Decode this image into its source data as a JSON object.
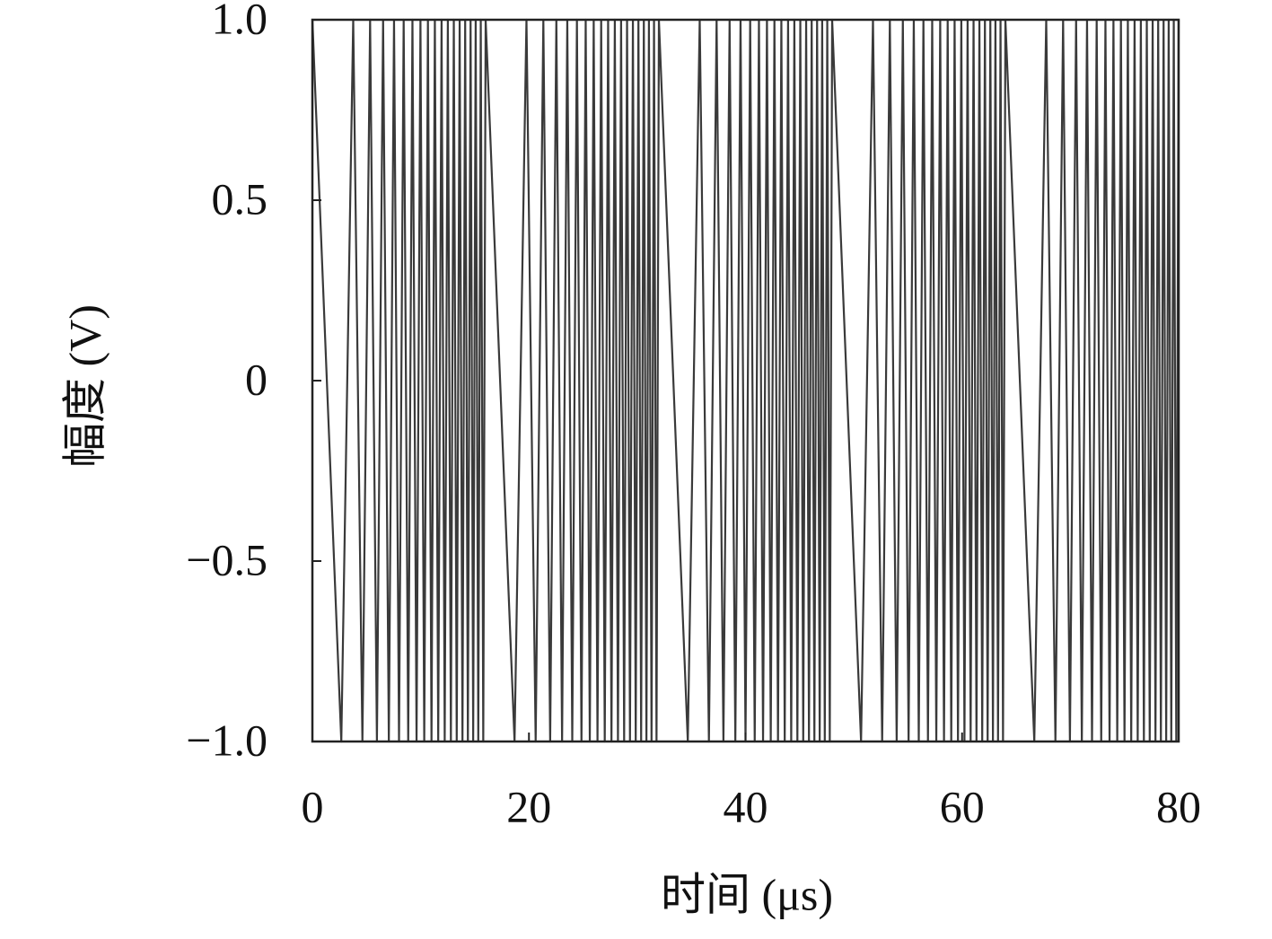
{
  "chart_data": {
    "type": "line",
    "xlabel": "时间 (μs)",
    "ylabel": "幅度 (V)",
    "xlim": [
      0,
      80
    ],
    "ylim": [
      -1.0,
      1.0
    ],
    "xticks": [
      0,
      20,
      40,
      60,
      80
    ],
    "yticks": [
      {
        "value": -1.0,
        "label": "−1.0"
      },
      {
        "value": -0.5,
        "label": "−0.5"
      },
      0,
      {
        "value": 0.5,
        "label": "0.5"
      },
      {
        "value": 1.0,
        "label": "1.0"
      }
    ],
    "grid": false,
    "series": [
      {
        "color": "#3a3a3a",
        "x": [
          0,
          2.67,
          3.77,
          4.62,
          5.33,
          5.96,
          6.53,
          7.06,
          7.54,
          8,
          8.43,
          8.85,
          9.24,
          9.62,
          9.98,
          10.33,
          10.67,
          11,
          11.31,
          11.62,
          11.93,
          12.22,
          12.51,
          12.79,
          13.06,
          13.33,
          13.6,
          13.86,
          14.11,
          14.36,
          14.61,
          14.85,
          15.08,
          15.32,
          15.55,
          15.78,
          16,
          18.67,
          19.77,
          20.62,
          21.33,
          21.96,
          22.53,
          23.06,
          23.54,
          24,
          24.43,
          24.85,
          25.24,
          25.62,
          25.98,
          26.33,
          26.67,
          27,
          27.31,
          27.62,
          27.93,
          28.22,
          28.51,
          28.79,
          29.06,
          29.33,
          29.6,
          29.86,
          30.11,
          30.36,
          30.61,
          30.85,
          31.08,
          31.32,
          31.55,
          31.78,
          32,
          34.67,
          35.77,
          36.62,
          37.33,
          37.96,
          38.53,
          39.06,
          39.54,
          40,
          40.43,
          40.85,
          41.24,
          41.62,
          41.98,
          42.33,
          42.67,
          43,
          43.31,
          43.62,
          43.93,
          44.22,
          44.51,
          44.79,
          45.06,
          45.33,
          45.6,
          45.86,
          46.11,
          46.36,
          46.61,
          46.85,
          47.08,
          47.32,
          47.55,
          47.78,
          48,
          50.67,
          51.77,
          52.62,
          53.33,
          53.96,
          54.53,
          55.06,
          55.54,
          56,
          56.43,
          56.85,
          57.24,
          57.62,
          57.98,
          58.33,
          58.67,
          59,
          59.31,
          59.62,
          59.93,
          60.22,
          60.51,
          60.79,
          61.06,
          61.33,
          61.6,
          61.86,
          62.11,
          62.36,
          62.61,
          62.85,
          63.08,
          63.32,
          63.55,
          63.78,
          64,
          66.67,
          67.77,
          68.62,
          69.33,
          69.96,
          70.53,
          71.06,
          71.54,
          72,
          72.43,
          72.85,
          73.24,
          73.62,
          73.98,
          74.33,
          74.67,
          75,
          75.31,
          75.62,
          75.93,
          76.22,
          76.51,
          76.79,
          77.06,
          77.33,
          77.6,
          77.86,
          78.11,
          78.36,
          78.61,
          78.85,
          79.08,
          79.32,
          79.55,
          79.78,
          80
        ],
        "values": [
          1,
          -1,
          1,
          -1,
          1,
          -1,
          1,
          -1,
          1,
          -1,
          1,
          -1,
          1,
          -1,
          1,
          -1,
          1,
          -1,
          1,
          -1,
          1,
          -1,
          1,
          -1,
          1,
          -1,
          1,
          -1,
          1,
          -1,
          1,
          -1,
          1,
          -1,
          1,
          -1,
          1,
          -1,
          1,
          -1,
          1,
          -1,
          1,
          -1,
          1,
          -1,
          1,
          -1,
          1,
          -1,
          1,
          -1,
          1,
          -1,
          1,
          -1,
          1,
          -1,
          1,
          -1,
          1,
          -1,
          1,
          -1,
          1,
          -1,
          1,
          -1,
          1,
          -1,
          1,
          -1,
          1,
          -1,
          1,
          -1,
          1,
          -1,
          1,
          -1,
          1,
          -1,
          1,
          -1,
          1,
          -1,
          1,
          -1,
          1,
          -1,
          1,
          -1,
          1,
          -1,
          1,
          -1,
          1,
          -1,
          1,
          -1,
          1,
          -1,
          1,
          -1,
          1,
          -1,
          1,
          -1,
          1,
          -1,
          1,
          -1,
          1,
          -1,
          1,
          -1,
          1,
          -1,
          1,
          -1,
          1,
          -1,
          1,
          -1,
          1,
          -1,
          1,
          -1,
          1,
          -1,
          1,
          -1,
          1,
          -1,
          1,
          -1,
          1,
          -1,
          1,
          -1,
          1,
          -1,
          1,
          -1,
          1,
          -1,
          1,
          -1,
          1,
          -1,
          1,
          -1,
          1,
          -1,
          1,
          -1,
          1,
          -1,
          1,
          -1,
          1,
          -1,
          1,
          -1,
          1,
          -1,
          1,
          -1,
          1,
          -1,
          1,
          -1,
          1,
          -1,
          1,
          -1,
          1,
          -1,
          1,
          -1,
          1
        ]
      }
    ]
  }
}
